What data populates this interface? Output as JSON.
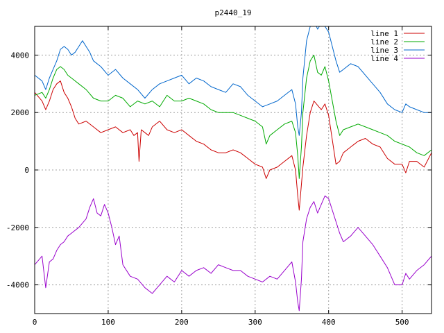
{
  "chart_data": {
    "type": "line",
    "title": "p2440_19",
    "xlabel": "",
    "ylabel": "",
    "xlim": [
      0,
      540
    ],
    "ylim": [
      -5000,
      5000
    ],
    "x_ticks": [
      0,
      100,
      200,
      300,
      400,
      500
    ],
    "y_ticks": [
      -4000,
      -2000,
      0,
      2000,
      4000
    ],
    "grid": true,
    "legend_position": "top-right",
    "series": [
      {
        "name": "line 1",
        "color": "#cc0000",
        "x": [
          0,
          10,
          15,
          20,
          25,
          30,
          35,
          40,
          45,
          50,
          55,
          60,
          70,
          80,
          90,
          100,
          110,
          120,
          130,
          135,
          140,
          142,
          145,
          150,
          155,
          160,
          170,
          180,
          190,
          200,
          210,
          220,
          230,
          240,
          250,
          260,
          270,
          280,
          290,
          300,
          310,
          315,
          320,
          330,
          340,
          350,
          355,
          358,
          360,
          363,
          365,
          370,
          375,
          380,
          390,
          395,
          400,
          410,
          415,
          420,
          430,
          440,
          450,
          460,
          470,
          480,
          490,
          500,
          505,
          510,
          520,
          530,
          540
        ],
        "values": [
          2700,
          2400,
          2100,
          2400,
          2800,
          3000,
          3100,
          2700,
          2500,
          2200,
          1800,
          1600,
          1700,
          1500,
          1300,
          1400,
          1500,
          1300,
          1400,
          1200,
          1300,
          300,
          1400,
          1300,
          1200,
          1500,
          1700,
          1400,
          1300,
          1400,
          1200,
          1000,
          900,
          700,
          600,
          600,
          700,
          600,
          400,
          200,
          100,
          -300,
          0,
          100,
          300,
          500,
          0,
          -900,
          -1400,
          -500,
          100,
          1200,
          2000,
          2400,
          2100,
          2300,
          1900,
          200,
          300,
          600,
          800,
          1000,
          1100,
          900,
          800,
          400,
          200,
          200,
          -100,
          300,
          300,
          100,
          600
        ]
      },
      {
        "name": "line 2",
        "color": "#00aa00",
        "x": [
          0,
          10,
          15,
          20,
          25,
          30,
          35,
          40,
          45,
          50,
          60,
          70,
          80,
          90,
          100,
          110,
          120,
          130,
          140,
          150,
          160,
          170,
          180,
          190,
          200,
          210,
          220,
          230,
          240,
          250,
          260,
          270,
          280,
          290,
          300,
          310,
          315,
          320,
          330,
          340,
          350,
          355,
          358,
          360,
          363,
          365,
          370,
          375,
          380,
          385,
          390,
          395,
          400,
          410,
          415,
          420,
          430,
          440,
          450,
          460,
          470,
          480,
          490,
          500,
          510,
          520,
          530,
          540
        ],
        "values": [
          2600,
          2700,
          2500,
          2800,
          3200,
          3500,
          3600,
          3500,
          3300,
          3200,
          3000,
          2800,
          2500,
          2400,
          2400,
          2600,
          2500,
          2200,
          2400,
          2300,
          2400,
          2200,
          2600,
          2400,
          2400,
          2500,
          2400,
          2300,
          2100,
          2000,
          2000,
          2000,
          1900,
          1800,
          1700,
          1500,
          900,
          1200,
          1400,
          1600,
          1700,
          1300,
          500,
          -300,
          800,
          2000,
          3200,
          3800,
          4000,
          3400,
          3300,
          3600,
          3100,
          1700,
          1200,
          1400,
          1500,
          1600,
          1500,
          1400,
          1300,
          1200,
          1000,
          900,
          800,
          600,
          500,
          700
        ]
      },
      {
        "name": "line 3",
        "color": "#0066cc",
        "x": [
          0,
          10,
          15,
          20,
          25,
          30,
          35,
          40,
          45,
          50,
          55,
          60,
          65,
          70,
          75,
          80,
          90,
          100,
          110,
          120,
          130,
          140,
          150,
          160,
          170,
          180,
          190,
          200,
          210,
          220,
          230,
          240,
          250,
          260,
          270,
          280,
          290,
          300,
          310,
          320,
          330,
          340,
          350,
          355,
          358,
          360,
          363,
          365,
          370,
          375,
          380,
          385,
          390,
          395,
          400,
          410,
          415,
          420,
          430,
          440,
          450,
          460,
          470,
          480,
          490,
          500,
          505,
          510,
          520,
          530,
          540
        ],
        "values": [
          3300,
          3100,
          2800,
          3200,
          3500,
          3800,
          4200,
          4300,
          4200,
          4000,
          4100,
          4300,
          4500,
          4300,
          4100,
          3800,
          3600,
          3300,
          3500,
          3200,
          3000,
          2800,
          2500,
          2800,
          3000,
          3100,
          3200,
          3300,
          3000,
          3200,
          3100,
          2900,
          2800,
          2700,
          3000,
          2900,
          2600,
          2400,
          2200,
          2300,
          2400,
          2600,
          2800,
          2300,
          1500,
          1200,
          2000,
          3200,
          4500,
          5000,
          5200,
          4900,
          5100,
          5000,
          4800,
          3800,
          3400,
          3500,
          3700,
          3600,
          3300,
          3000,
          2700,
          2300,
          2100,
          2000,
          2300,
          2200,
          2100,
          2000,
          2000
        ]
      },
      {
        "name": "line 4",
        "color": "#9900cc",
        "x": [
          0,
          10,
          15,
          20,
          25,
          30,
          35,
          40,
          45,
          50,
          60,
          70,
          75,
          80,
          85,
          90,
          95,
          100,
          105,
          110,
          115,
          120,
          130,
          140,
          150,
          160,
          170,
          180,
          190,
          200,
          210,
          220,
          230,
          240,
          250,
          260,
          270,
          280,
          290,
          300,
          310,
          320,
          330,
          340,
          350,
          355,
          358,
          360,
          363,
          365,
          370,
          375,
          380,
          385,
          390,
          395,
          400,
          410,
          415,
          420,
          430,
          440,
          450,
          460,
          470,
          480,
          490,
          500,
          505,
          510,
          520,
          530,
          540
        ],
        "values": [
          -3300,
          -3000,
          -4100,
          -3200,
          -3100,
          -2800,
          -2600,
          -2500,
          -2300,
          -2200,
          -2000,
          -1700,
          -1300,
          -1000,
          -1500,
          -1600,
          -1200,
          -1500,
          -2000,
          -2600,
          -2300,
          -3300,
          -3700,
          -3800,
          -4100,
          -4300,
          -4000,
          -3700,
          -3900,
          -3500,
          -3700,
          -3500,
          -3400,
          -3600,
          -3300,
          -3400,
          -3500,
          -3500,
          -3700,
          -3800,
          -3900,
          -3700,
          -3800,
          -3500,
          -3200,
          -3900,
          -4600,
          -4900,
          -3800,
          -2500,
          -1700,
          -1300,
          -1100,
          -1500,
          -1200,
          -900,
          -1000,
          -1800,
          -2200,
          -2500,
          -2300,
          -2000,
          -2300,
          -2600,
          -3000,
          -3400,
          -4000,
          -4000,
          -3600,
          -3800,
          -3500,
          -3300,
          -3000
        ]
      }
    ]
  }
}
